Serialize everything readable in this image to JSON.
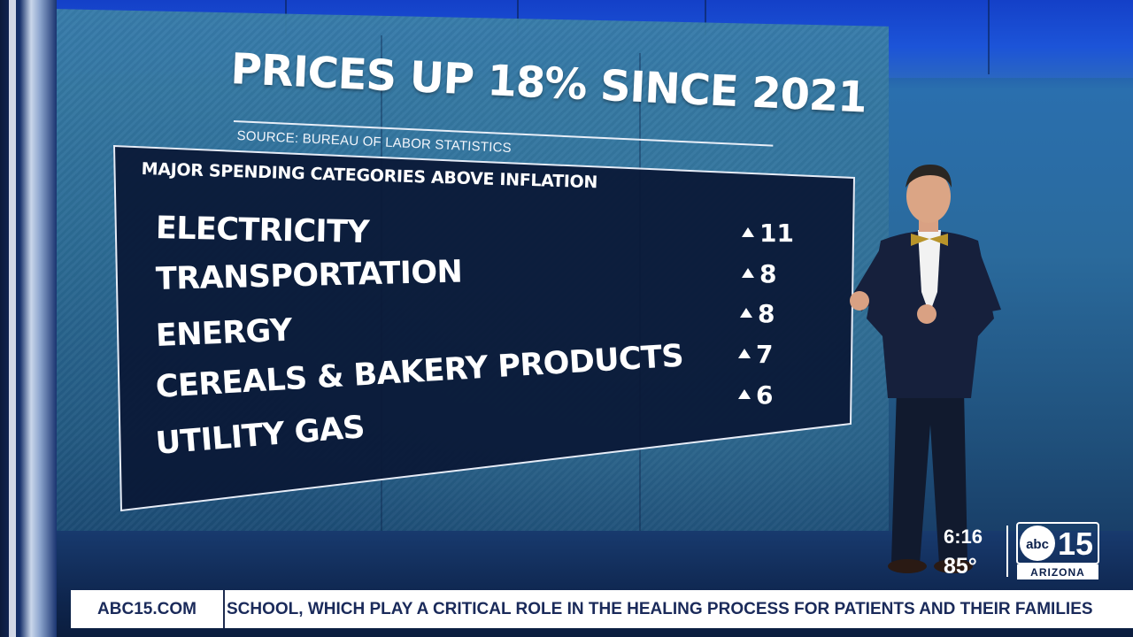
{
  "graphic": {
    "title": "PRICES UP 18% SINCE 2021",
    "source": "SOURCE: BUREAU OF LABOR STATISTICS",
    "panel_header": "MAJOR SPENDING CATEGORIES ABOVE INFLATION",
    "categories": [
      {
        "label": "ELECTRICITY",
        "value": "11"
      },
      {
        "label": "TRANSPORTATION",
        "value": "8"
      },
      {
        "label": "ENERGY",
        "value": "8"
      },
      {
        "label": "CEREALS & BAKERY PRODUCTS",
        "value": "7"
      },
      {
        "label": "UTILITY GAS",
        "value": "6"
      }
    ]
  },
  "bug": {
    "time": "6:16",
    "temperature": "85°",
    "logo_abc": "abc",
    "logo_number": "15",
    "logo_market": "ARIZONA"
  },
  "ticker": {
    "site": "ABC15.COM",
    "text": "SCHOOL, WHICH PLAY A CRITICAL ROLE IN THE HEALING PROCESS FOR PATIENTS AND THEIR FAMILIES"
  },
  "colors": {
    "studio_blue": "#1c54d8",
    "panel_navy": "#0a1836",
    "ticker_text": "#1a2a5a"
  }
}
